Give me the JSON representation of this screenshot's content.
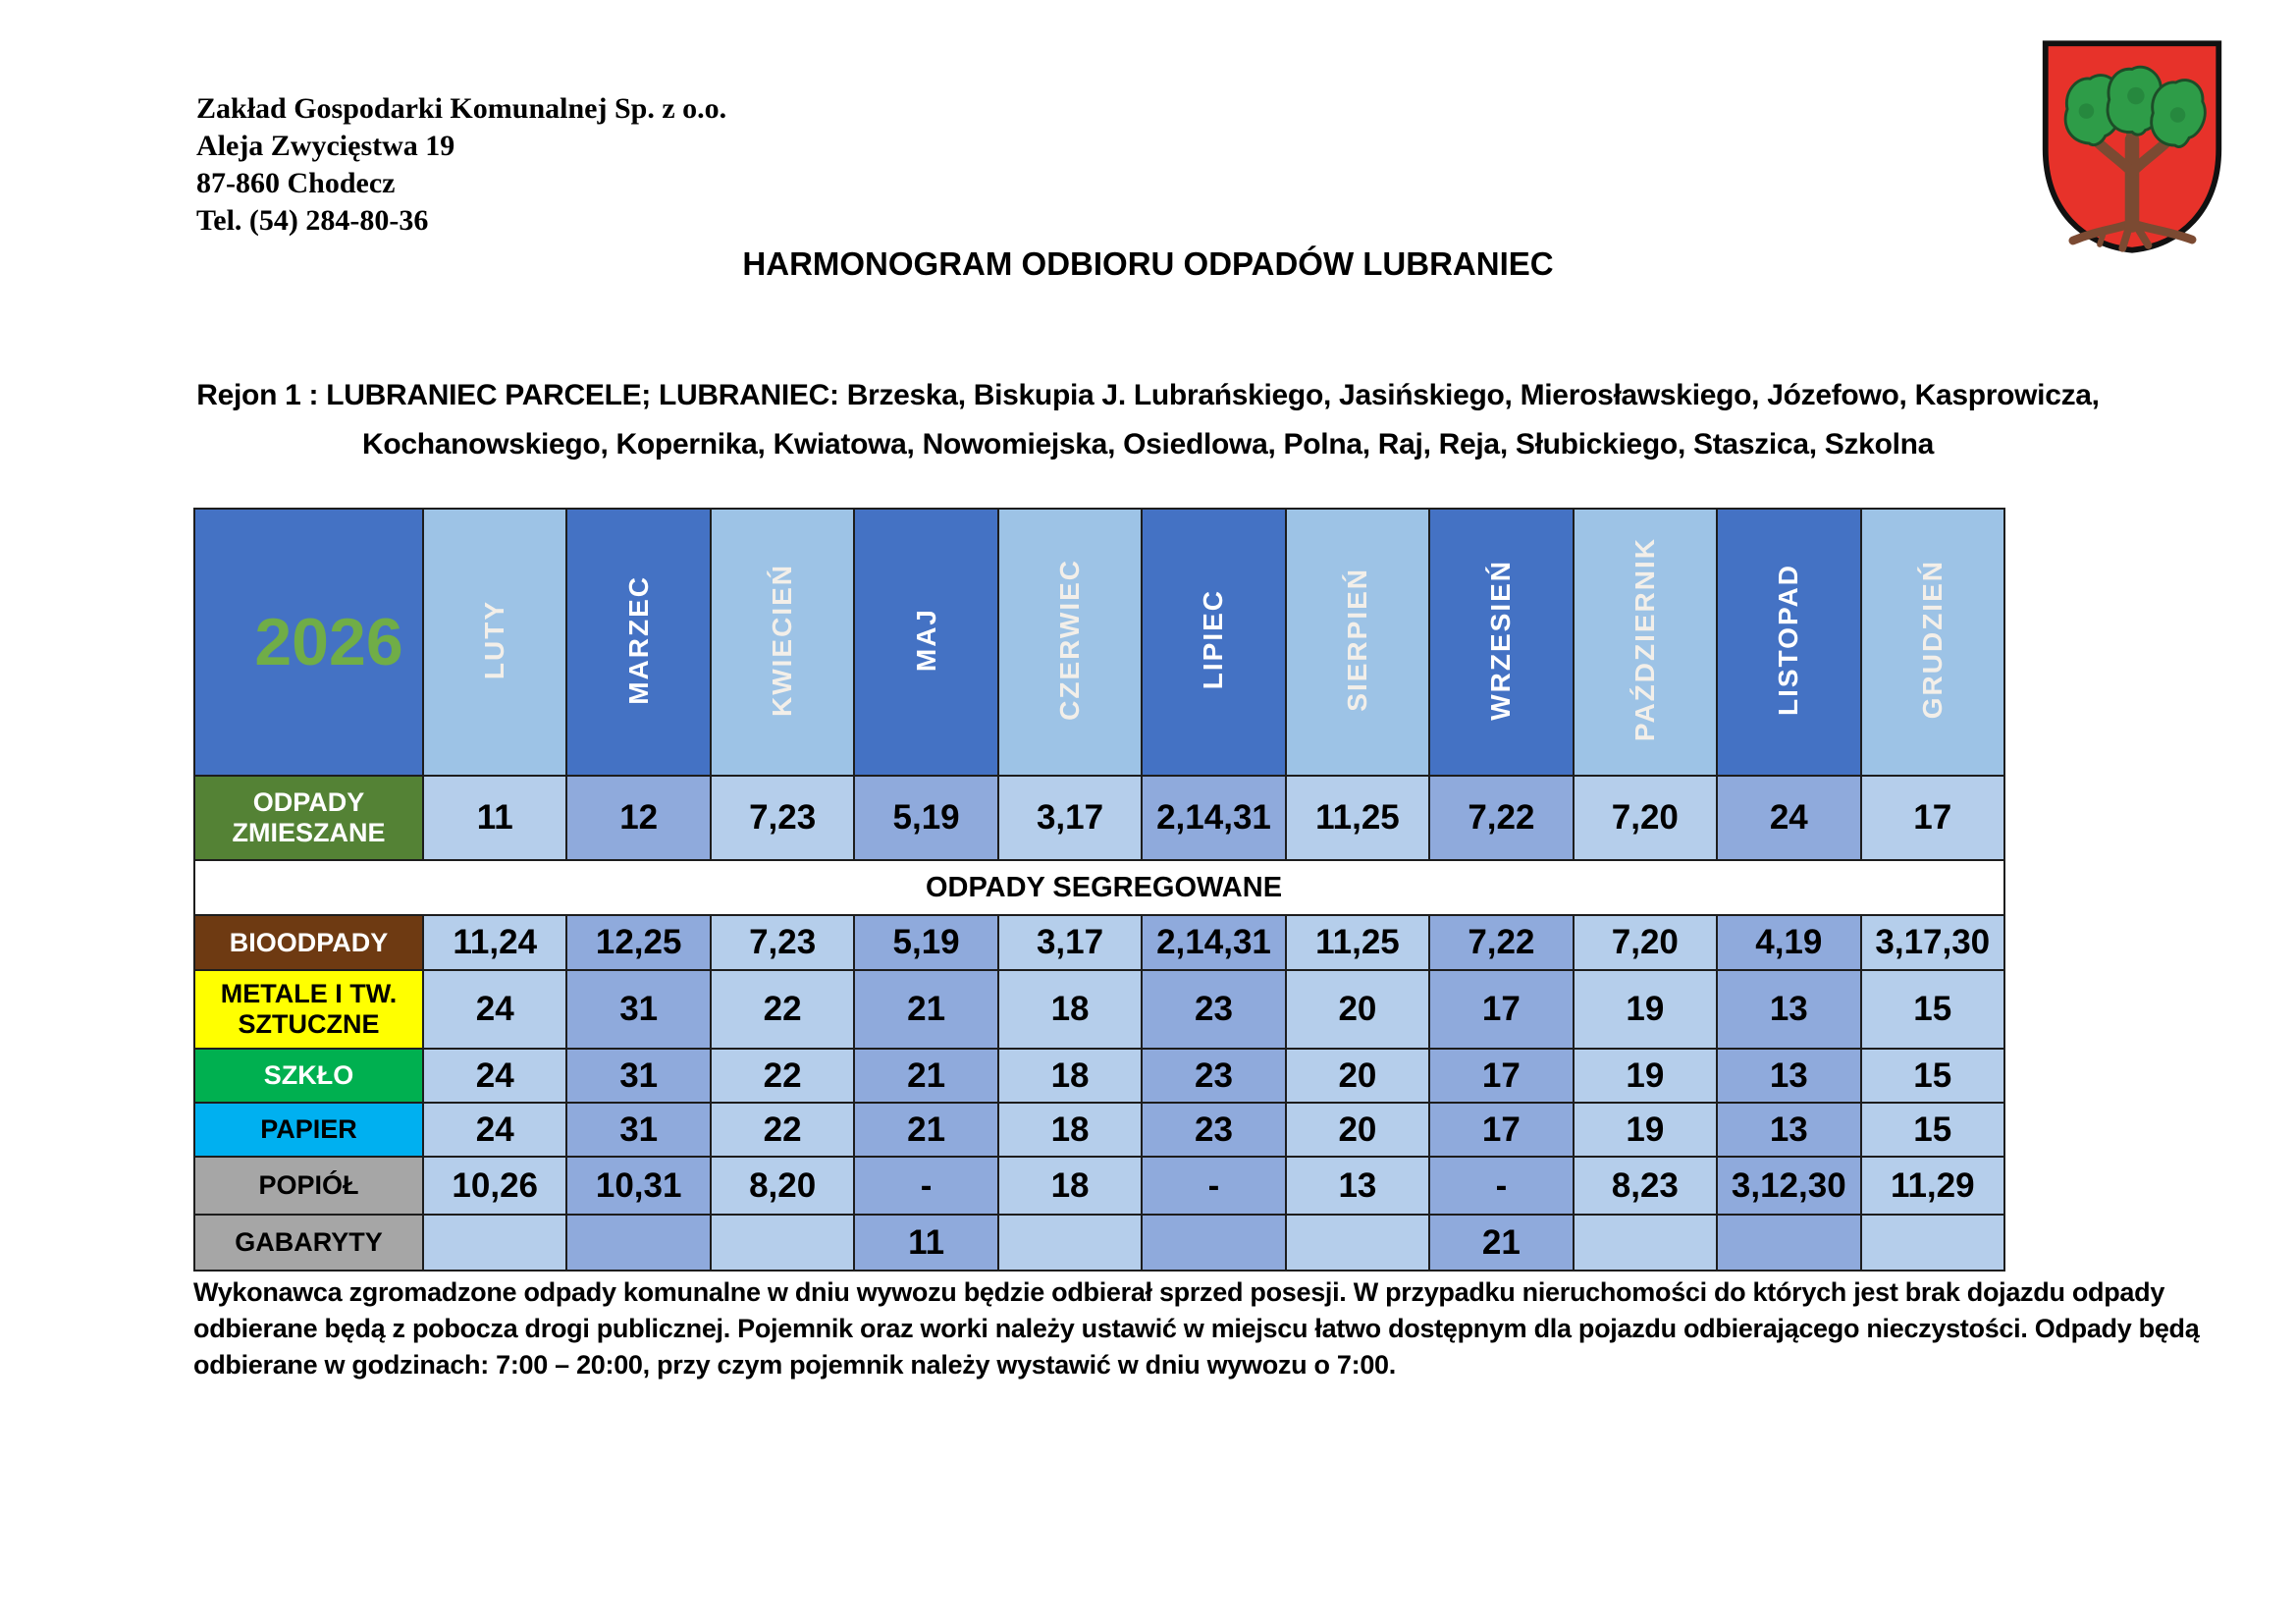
{
  "company": {
    "name": "Zakład Gospodarki Komunalnej Sp. z o.o.",
    "address_line1": "Aleja Zwycięstwa 19",
    "address_line2": "87-860 Chodecz",
    "phone": "Tel. (54) 284-80-36"
  },
  "title": "HARMONOGRAM ODBIORU ODPADÓW LUBRANIEC",
  "region": {
    "line1": "Rejon 1 : LUBRANIEC PARCELE; LUBRANIEC: Brzeska, Biskupia J. Lubrańskiego, Jasińskiego, Mierosławskiego, Józefowo, Kasprowicza,",
    "line2": "Kochanowskiego, Kopernika, Kwiatowa, Nowomiejska, Osiedlowa, Polna, Raj, Reja, Słubickiego, Staszica, Szkolna"
  },
  "schedule": {
    "year": "2026",
    "year_color": "#70AD47",
    "months": [
      "LUTY",
      "MARZEC",
      "KWIECIEŃ",
      "MAJ",
      "CZERWIEC",
      "LIPIEC",
      "SIERPIEŃ",
      "WRZESIEŃ",
      "PAŹDZIERNIK",
      "LISTOPAD",
      "GRUDZIEŃ"
    ],
    "rows": [
      {
        "type": "data",
        "label": "ODPADY ZMIESZANE",
        "label_bg": "#548235",
        "label_color": "#FFFFFF",
        "values": [
          "11",
          "12",
          "7,23",
          "5,19",
          "3,17",
          "2,14,31",
          "11,25",
          "7,22",
          "7,20",
          "24",
          "17"
        ]
      },
      {
        "type": "separator",
        "label": "ODPADY SEGREGOWANE"
      },
      {
        "type": "data",
        "label": "BIOODPADY",
        "label_bg": "#6E3A12",
        "label_color": "#FFFFFF",
        "values": [
          "11,24",
          "12,25",
          "7,23",
          "5,19",
          "3,17",
          "2,14,31",
          "11,25",
          "7,22",
          "7,20",
          "4,19",
          "3,17,30"
        ]
      },
      {
        "type": "data",
        "label": "METALE I TW. SZTUCZNE",
        "label_bg": "#FFFF00",
        "label_color": "#000000",
        "values": [
          "24",
          "31",
          "22",
          "21",
          "18",
          "23",
          "20",
          "17",
          "19",
          "13",
          "15"
        ]
      },
      {
        "type": "data",
        "label": "SZKŁO",
        "label_bg": "#00B050",
        "label_color": "#FFFFFF",
        "values": [
          "24",
          "31",
          "22",
          "21",
          "18",
          "23",
          "20",
          "17",
          "19",
          "13",
          "15"
        ]
      },
      {
        "type": "data",
        "label": "PAPIER",
        "label_bg": "#00B0F0",
        "label_color": "#000000",
        "values": [
          "24",
          "31",
          "22",
          "21",
          "18",
          "23",
          "20",
          "17",
          "19",
          "13",
          "15"
        ]
      },
      {
        "type": "data",
        "label": "POPIÓŁ",
        "label_bg": "#A6A6A6",
        "label_color": "#000000",
        "values": [
          "10,26",
          "10,31",
          "8,20",
          "-",
          "18",
          "-",
          "13",
          "-",
          "8,23",
          "3,12,30",
          "11,29"
        ]
      },
      {
        "type": "data",
        "label": "GABARYTY",
        "label_bg": "#A6A6A6",
        "label_color": "#000000",
        "values": [
          "",
          "",
          "",
          "11",
          "",
          "",
          "",
          "21",
          "",
          "",
          ""
        ]
      }
    ],
    "colors": {
      "header_dark": "#4472C4",
      "header_light": "#9DC3E6",
      "cell_dark": "#8FAADC",
      "cell_light": "#B5CEEB",
      "border": "#1D1D1D"
    }
  },
  "footer": {
    "line1": "Wykonawca zgromadzone odpady komunalne w dniu wywozu będzie odbierał sprzed posesji. W przypadku nieruchomości do których jest brak dojazdu odpady",
    "line2": "odbierane będą z pobocza drogi publicznej. Pojemnik oraz worki należy ustawić w miejscu łatwo dostępnym dla pojazdu odbierającego nieczystości. Odpady będą",
    "line3": "odbierane w godzinach: 7:00 – 20:00, przy czym pojemnik należy wystawić w dniu wywozu o 7:00."
  },
  "crest": {
    "name": "herb-lubraniec",
    "shield_color": "#E7322A",
    "trunk_color": "#7B4A32",
    "crown_color": "#2E9C48"
  }
}
